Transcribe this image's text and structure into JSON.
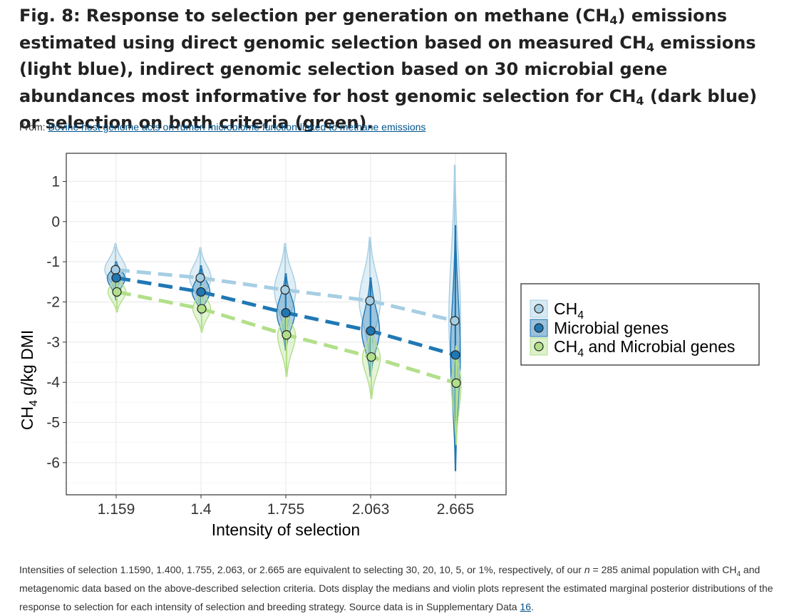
{
  "figure": {
    "title_pre": "Fig. 8: Response to selection per generation on methane (CH",
    "title_sub": "4",
    "title_mid1": ") emissions estimated using direct genomic selection based on measured CH",
    "title_sub2": "4",
    "title_mid2": " emissions (light blue), indirect genomic selection based on 30 microbial gene abundances most informative for host genomic selection for CH",
    "title_sub3": "4",
    "title_post": " (dark blue) or selection on both criteria (green).",
    "from_label": "From: ",
    "from_link": "Bovine host genome acts on rumen microbiome function linked to methane emissions"
  },
  "caption": {
    "part1": "Intensities of selection 1.1590, 1.400, 1.755, 2.063, or 2.665 are equivalent to selecting 30, 20, 10, 5, or 1%, respectively, of our ",
    "n_italic": "n",
    "part2": " = 285 animal population with CH",
    "sub": "4",
    "part3": " and metagenomic data based on the above-described selection criteria. Dots display the medians and violin plots represent the estimated marginal posterior distributions of the response to selection for each intensity of selection and breeding strategy. Source data is in Supplementary Data ",
    "link": "16",
    "part4": "."
  },
  "chart_data": {
    "type": "violin",
    "xlabel": "Intensity of selection",
    "ylabel_pre": "CH",
    "ylabel_sub": "4",
    "ylabel_post": " g/kg DMI",
    "categories": [
      "1.159",
      "1.4",
      "1.755",
      "2.063",
      "2.665"
    ],
    "ylim": [
      -6.8,
      1.7
    ],
    "yticks": [
      1,
      0,
      -1,
      -2,
      -3,
      -4,
      -5,
      -6
    ],
    "grid": true,
    "legend_position": "right",
    "series": [
      {
        "name": "CH4",
        "legend_pre": "CH",
        "legend_sub": "4",
        "legend_post": "",
        "fill": "#a6cee3",
        "line": "#a6cee3",
        "medians": [
          -1.2,
          -1.4,
          -1.7,
          -1.97,
          -2.47
        ],
        "violin_ranges": [
          [
            -1.75,
            -0.55
          ],
          [
            -2.1,
            -0.65
          ],
          [
            -2.95,
            -0.55
          ],
          [
            -3.4,
            -0.4
          ],
          [
            -5.2,
            1.4
          ]
        ]
      },
      {
        "name": "Microbial genes",
        "legend_pre": "Microbial genes",
        "legend_sub": "",
        "legend_post": "",
        "fill": "#1f78b4",
        "line": "#1f78b4",
        "medians": [
          -1.4,
          -1.75,
          -2.27,
          -2.72,
          -3.32
        ],
        "violin_ranges": [
          [
            -1.95,
            -1.0
          ],
          [
            -2.3,
            -1.1
          ],
          [
            -3.2,
            -1.3
          ],
          [
            -3.85,
            -1.4
          ],
          [
            -6.2,
            -0.1
          ]
        ]
      },
      {
        "name": "CH4 and Microbial genes",
        "legend_pre": "CH",
        "legend_sub": "4",
        "legend_post": " and Microbial genes",
        "fill": "#b2df8a",
        "line": "#b2df8a",
        "medians": [
          -1.75,
          -2.17,
          -2.82,
          -3.37,
          -4.02
        ],
        "violin_ranges": [
          [
            -2.25,
            -1.3
          ],
          [
            -2.75,
            -1.6
          ],
          [
            -3.85,
            -2.2
          ],
          [
            -4.4,
            -2.7
          ],
          [
            -5.55,
            -3.1
          ]
        ]
      }
    ]
  }
}
